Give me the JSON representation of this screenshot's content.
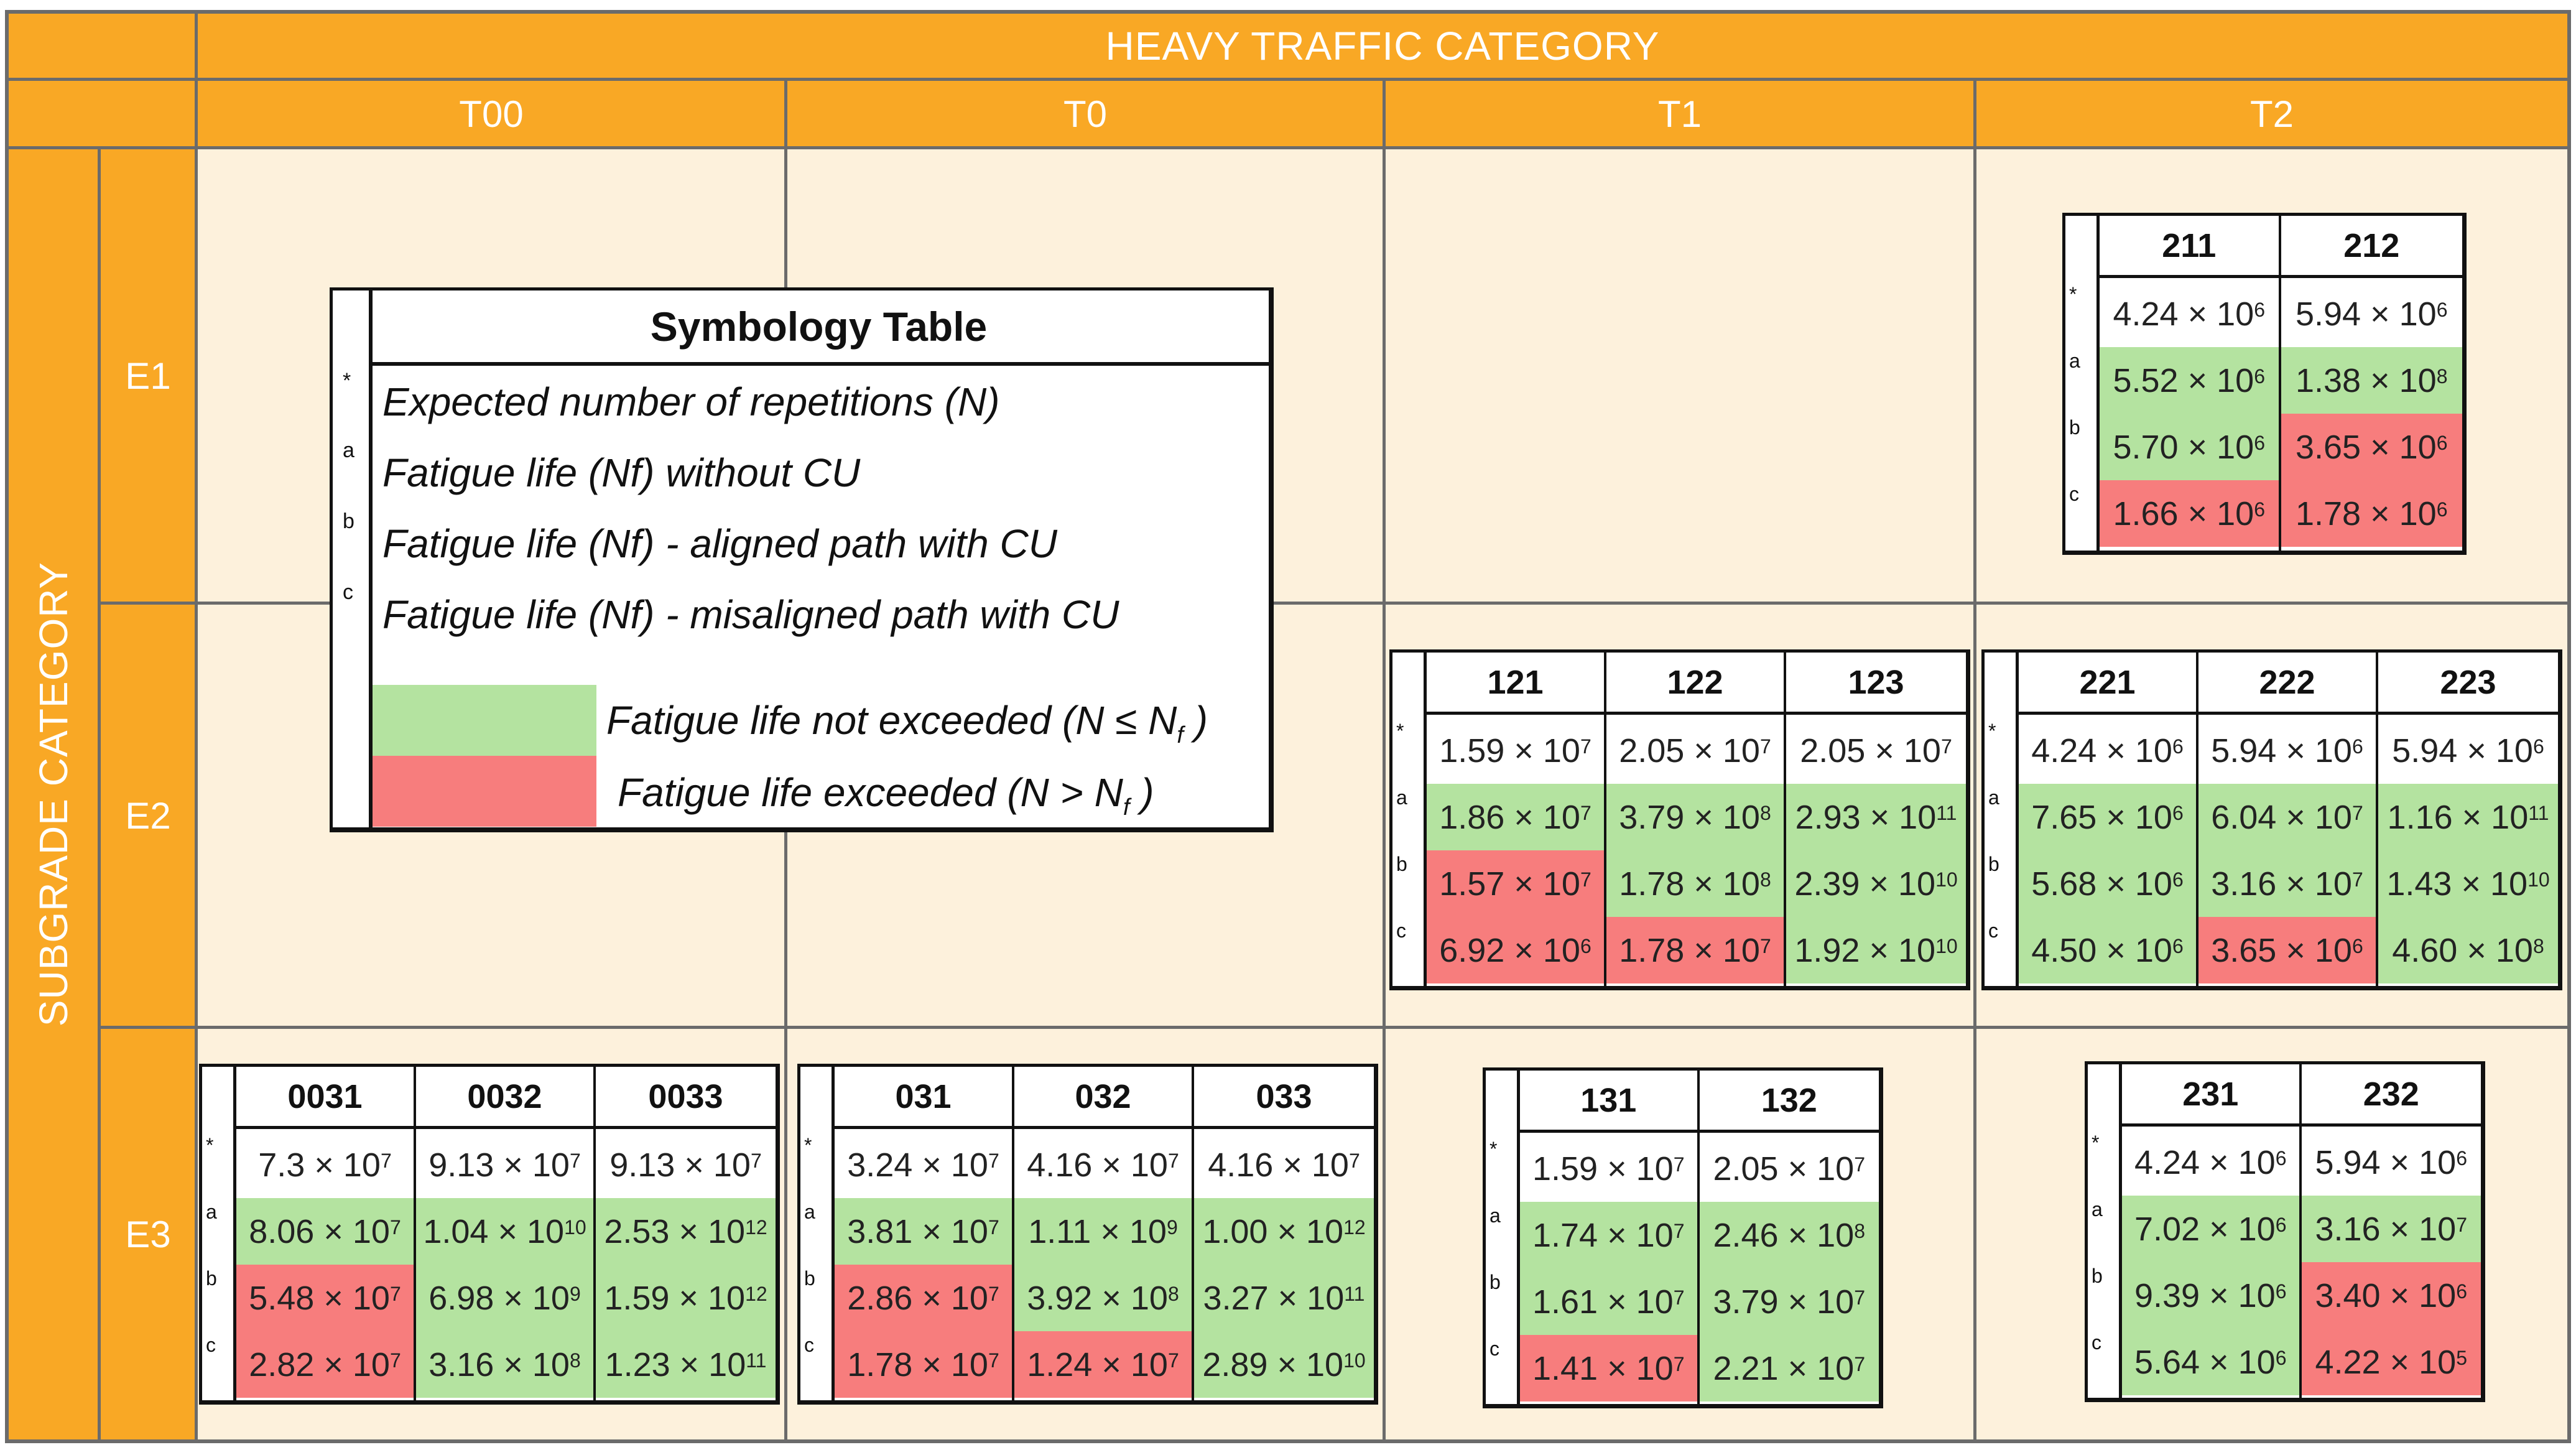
{
  "header": {
    "main": "HEAVY TRAFFIC CATEGORY",
    "columns": [
      "T00",
      "T0",
      "T1",
      "T2"
    ]
  },
  "side": {
    "main": "SUBGRADE CATEGORY",
    "rows": [
      "E1",
      "E2",
      "E3"
    ]
  },
  "symbology": {
    "title": "Symbology Table",
    "items": [
      {
        "key": "*",
        "label": "Expected number of repetitions (N)"
      },
      {
        "key": "a",
        "label": "Fatigue life (Nf) without CU"
      },
      {
        "key": "b",
        "label": "Fatigue life (Nf) - aligned path with CU"
      },
      {
        "key": "c",
        "label": "Fatigue life (Nf) - misaligned path with CU"
      }
    ],
    "legend_green": {
      "text": "Fatigue life not exceeded (N ≤ N",
      "sub": "f",
      "end": " )",
      "color": "#b4e3a0"
    },
    "legend_red": {
      "text": "Fatigue life exceeded (N > N",
      "sub": "f",
      "end": " )",
      "color": "#f77d7d"
    }
  },
  "row_keys": [
    "*",
    "a",
    "b",
    "c"
  ],
  "tables": [
    {
      "id": "t2-e1",
      "columns": [
        {
          "h": "211",
          "cells": [
            [
              "4.24 × 10",
              "6",
              "w"
            ],
            [
              "5.52 × 10",
              "6",
              "g"
            ],
            [
              "5.70 × 10",
              "6",
              "g"
            ],
            [
              "1.66 × 10",
              "6",
              "r"
            ]
          ]
        },
        {
          "h": "212",
          "cells": [
            [
              "5.94 × 10",
              "6",
              "w"
            ],
            [
              "1.38 × 10",
              "8",
              "g"
            ],
            [
              "3.65 × 10",
              "6",
              "r"
            ],
            [
              "1.78 × 10",
              "6",
              "r"
            ]
          ]
        }
      ]
    },
    {
      "id": "t1-e2",
      "columns": [
        {
          "h": "121",
          "cells": [
            [
              "1.59 × 10",
              "7",
              "w"
            ],
            [
              "1.86 × 10",
              "7",
              "g"
            ],
            [
              "1.57 × 10",
              "7",
              "r"
            ],
            [
              "6.92 × 10",
              "6",
              "r"
            ]
          ]
        },
        {
          "h": "122",
          "cells": [
            [
              "2.05 × 10",
              "7",
              "w"
            ],
            [
              "3.79 × 10",
              "8",
              "g"
            ],
            [
              "1.78 × 10",
              "8",
              "g"
            ],
            [
              "1.78 × 10",
              "7",
              "r"
            ]
          ]
        },
        {
          "h": "123",
          "cells": [
            [
              "2.05 × 10",
              "7",
              "w"
            ],
            [
              "2.93 × 10",
              "11",
              "g"
            ],
            [
              "2.39 × 10",
              "10",
              "g"
            ],
            [
              "1.92 × 10",
              "10",
              "g"
            ]
          ]
        }
      ]
    },
    {
      "id": "t2-e2",
      "columns": [
        {
          "h": "221",
          "cells": [
            [
              "4.24 × 10",
              "6",
              "w"
            ],
            [
              "7.65 × 10",
              "6",
              "g"
            ],
            [
              "5.68 × 10",
              "6",
              "g"
            ],
            [
              "4.50 × 10",
              "6",
              "g"
            ]
          ]
        },
        {
          "h": "222",
          "cells": [
            [
              "5.94 × 10",
              "6",
              "w"
            ],
            [
              "6.04 × 10",
              "7",
              "g"
            ],
            [
              "3.16 × 10",
              "7",
              "g"
            ],
            [
              "3.65 × 10",
              "6",
              "r"
            ]
          ]
        },
        {
          "h": "223",
          "cells": [
            [
              "5.94 × 10",
              "6",
              "w"
            ],
            [
              "1.16 × 10",
              "11",
              "g"
            ],
            [
              "1.43 × 10",
              "10",
              "g"
            ],
            [
              "4.60 × 10",
              "8",
              "g"
            ]
          ]
        }
      ]
    },
    {
      "id": "t00-e3",
      "columns": [
        {
          "h": "0031",
          "cells": [
            [
              "7.3 × 10",
              "7",
              "w"
            ],
            [
              "8.06 × 10",
              "7",
              "g"
            ],
            [
              "5.48 × 10",
              "7",
              "r"
            ],
            [
              "2.82 × 10",
              "7",
              "r"
            ]
          ]
        },
        {
          "h": "0032",
          "cells": [
            [
              "9.13 × 10",
              "7",
              "w"
            ],
            [
              "1.04 × 10",
              "10",
              "g"
            ],
            [
              "6.98 × 10",
              "9",
              "g"
            ],
            [
              "3.16 × 10",
              "8",
              "g"
            ]
          ]
        },
        {
          "h": "0033",
          "cells": [
            [
              "9.13 × 10",
              "7",
              "w"
            ],
            [
              "2.53 × 10",
              "12",
              "g"
            ],
            [
              "1.59 × 10",
              "12",
              "g"
            ],
            [
              "1.23 × 10",
              "11",
              "g"
            ]
          ]
        }
      ]
    },
    {
      "id": "t0-e3",
      "columns": [
        {
          "h": "031",
          "cells": [
            [
              "3.24 × 10",
              "7",
              "w"
            ],
            [
              "3.81 × 10",
              "7",
              "g"
            ],
            [
              "2.86 × 10",
              "7",
              "r"
            ],
            [
              "1.78 × 10",
              "7",
              "r"
            ]
          ]
        },
        {
          "h": "032",
          "cells": [
            [
              "4.16 × 10",
              "7",
              "w"
            ],
            [
              "1.11 × 10",
              "9",
              "g"
            ],
            [
              "3.92 × 10",
              "8",
              "g"
            ],
            [
              "1.24 × 10",
              "7",
              "r"
            ]
          ]
        },
        {
          "h": "033",
          "cells": [
            [
              "4.16 × 10",
              "7",
              "w"
            ],
            [
              "1.00 × 10",
              "12",
              "g"
            ],
            [
              "3.27 × 10",
              "11",
              "g"
            ],
            [
              "2.89 × 10",
              "10",
              "g"
            ]
          ]
        }
      ]
    },
    {
      "id": "t1-e3",
      "columns": [
        {
          "h": "131",
          "cells": [
            [
              "1.59 × 10",
              "7",
              "w"
            ],
            [
              "1.74 × 10",
              "7",
              "g"
            ],
            [
              "1.61 × 10",
              "7",
              "g"
            ],
            [
              "1.41 × 10",
              "7",
              "r"
            ]
          ]
        },
        {
          "h": "132",
          "cells": [
            [
              "2.05 × 10",
              "7",
              "w"
            ],
            [
              "2.46 × 10",
              "8",
              "g"
            ],
            [
              "3.79 × 10",
              "7",
              "g"
            ],
            [
              "2.21 × 10",
              "7",
              "g"
            ]
          ]
        }
      ]
    },
    {
      "id": "t2-e3",
      "columns": [
        {
          "h": "231",
          "cells": [
            [
              "4.24 × 10",
              "6",
              "w"
            ],
            [
              "7.02 × 10",
              "6",
              "g"
            ],
            [
              "9.39 × 10",
              "6",
              "g"
            ],
            [
              "5.64 × 10",
              "6",
              "g"
            ]
          ]
        },
        {
          "h": "232",
          "cells": [
            [
              "5.94 × 10",
              "6",
              "w"
            ],
            [
              "3.16 × 10",
              "7",
              "g"
            ],
            [
              "3.40 × 10",
              "6",
              "r"
            ],
            [
              "4.22 × 10",
              "5",
              "r"
            ]
          ]
        }
      ]
    }
  ]
}
